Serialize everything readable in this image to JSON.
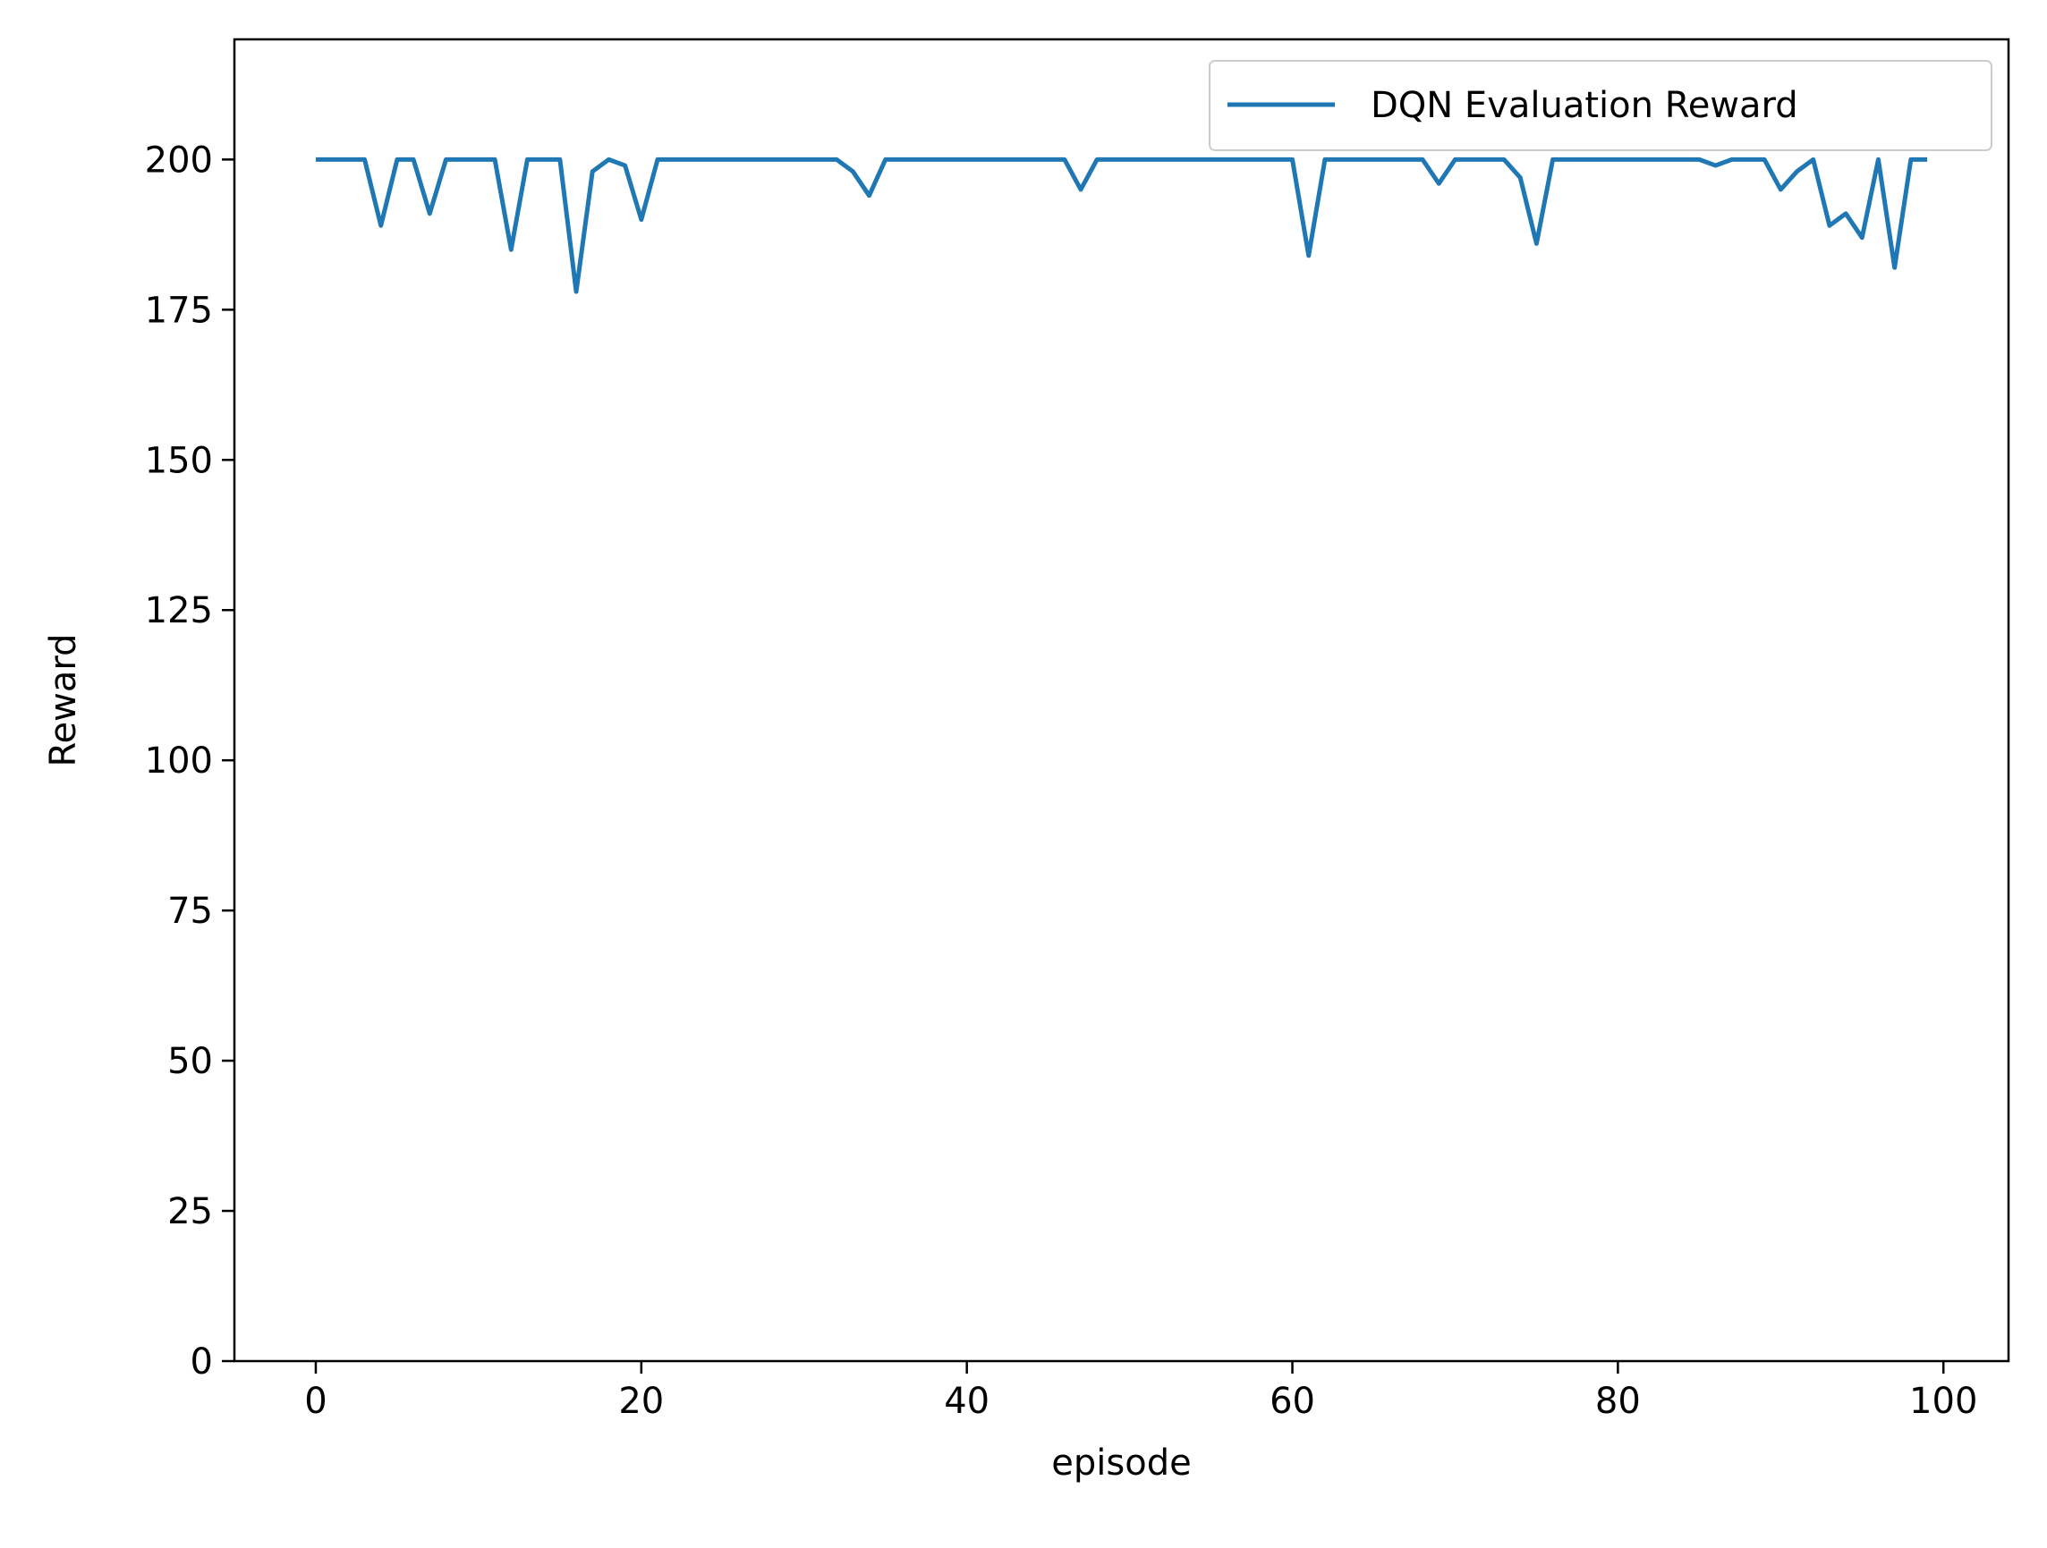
{
  "chart_data": {
    "type": "line",
    "title": "",
    "xlabel": "episode",
    "ylabel": "Reward",
    "xlim": [
      -5,
      104
    ],
    "ylim": [
      0,
      220
    ],
    "xticks": [
      0,
      20,
      40,
      60,
      80,
      100
    ],
    "yticks": [
      0,
      25,
      50,
      75,
      100,
      125,
      150,
      175,
      200
    ],
    "grid": false,
    "legend": "top-right",
    "series": [
      {
        "name": "DQN Evaluation Reward",
        "color": "#1f77b4",
        "x": [
          0,
          1,
          2,
          3,
          4,
          5,
          6,
          7,
          8,
          9,
          10,
          11,
          12,
          13,
          14,
          15,
          16,
          17,
          18,
          19,
          20,
          21,
          22,
          23,
          24,
          25,
          26,
          27,
          28,
          29,
          30,
          31,
          32,
          33,
          34,
          35,
          36,
          37,
          38,
          39,
          40,
          41,
          42,
          43,
          44,
          45,
          46,
          47,
          48,
          49,
          50,
          51,
          52,
          53,
          54,
          55,
          56,
          57,
          58,
          59,
          60,
          61,
          62,
          63,
          64,
          65,
          66,
          67,
          68,
          69,
          70,
          71,
          72,
          73,
          74,
          75,
          76,
          77,
          78,
          79,
          80,
          81,
          82,
          83,
          84,
          85,
          86,
          87,
          88,
          89,
          90,
          91,
          92,
          93,
          94,
          95,
          96,
          97,
          98,
          99
        ],
        "values": [
          200,
          200,
          200,
          200,
          189,
          200,
          200,
          191,
          200,
          200,
          200,
          200,
          185,
          200,
          200,
          200,
          178,
          198,
          200,
          199,
          190,
          200,
          200,
          200,
          200,
          200,
          200,
          200,
          200,
          200,
          200,
          200,
          200,
          198,
          194,
          200,
          200,
          200,
          200,
          200,
          200,
          200,
          200,
          200,
          200,
          200,
          200,
          195,
          200,
          200,
          200,
          200,
          200,
          200,
          200,
          200,
          200,
          200,
          200,
          200,
          200,
          184,
          200,
          200,
          200,
          200,
          200,
          200,
          200,
          196,
          200,
          200,
          200,
          200,
          197,
          186,
          200,
          200,
          200,
          200,
          200,
          200,
          200,
          200,
          200,
          200,
          199,
          200,
          200,
          200,
          195,
          198,
          200,
          189,
          191,
          187,
          200,
          182,
          200,
          200
        ]
      }
    ]
  }
}
